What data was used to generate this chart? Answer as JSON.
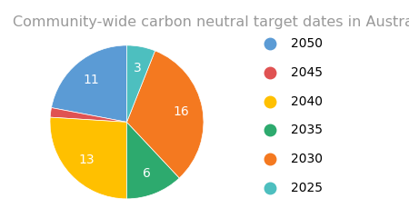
{
  "title": "Community-wide carbon neutral target dates in Australia",
  "labels": [
    "2050",
    "2045",
    "2040",
    "2035",
    "2030",
    "2025"
  ],
  "values": [
    11,
    1,
    13,
    6,
    16,
    3
  ],
  "colors": [
    "#5B9BD5",
    "#E05252",
    "#FFC000",
    "#2DAA6E",
    "#F47920",
    "#4DBFBF"
  ],
  "title_fontsize": 11.5,
  "label_fontsize": 10,
  "legend_fontsize": 10,
  "startangle": 90,
  "background_color": "#ffffff"
}
